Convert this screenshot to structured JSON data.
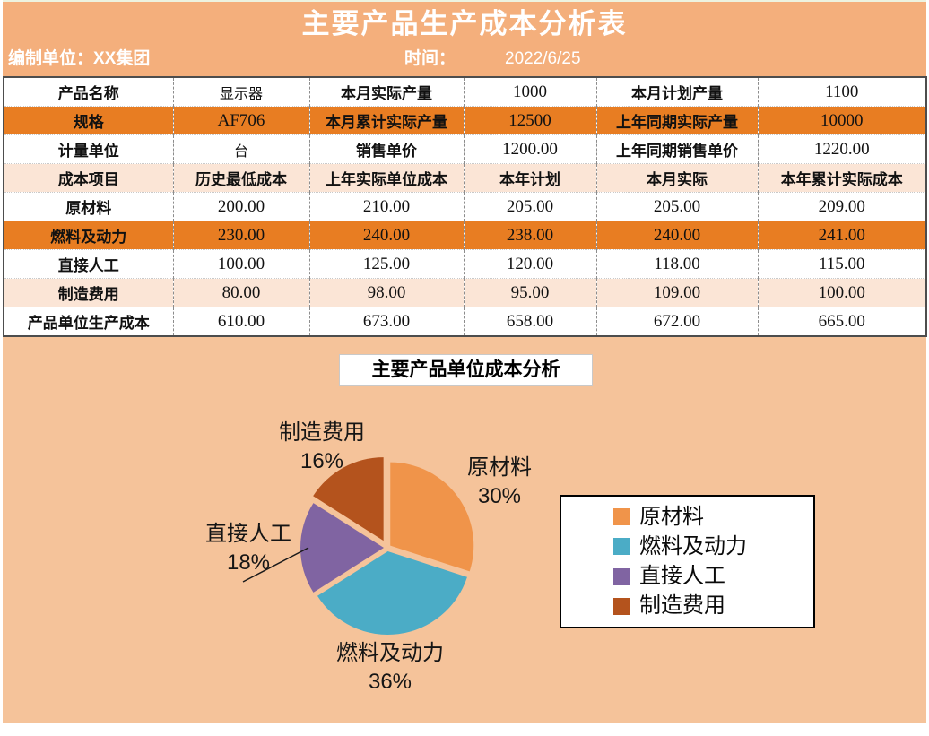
{
  "header": {
    "title": "主要产品生产成本分析表",
    "unit": "编制单位：XX集团",
    "time_label": "时间：",
    "date": "2022/6/25"
  },
  "table": {
    "info_rows": [
      {
        "highlight": "white",
        "cells": [
          "产品名称",
          "显示器",
          "本月实际产量",
          "1000",
          "本月计划产量",
          "1100"
        ]
      },
      {
        "highlight": "orange",
        "cells": [
          "规格",
          "AF706",
          "本月累计实际产量",
          "12500",
          "上年同期实际产量",
          "10000"
        ]
      },
      {
        "highlight": "white",
        "cells": [
          "计量单位",
          "台",
          "销售单价",
          "1200.00",
          "上年同期销售单价",
          "1220.00"
        ]
      }
    ],
    "cost_header": {
      "highlight": "peach",
      "cells": [
        "成本项目",
        "历史最低成本",
        "上年实际单位成本",
        "本年计划",
        "本月实际",
        "本年累计实际成本"
      ]
    },
    "cost_rows": [
      {
        "highlight": "white",
        "cells": [
          "原材料",
          "200.00",
          "210.00",
          "205.00",
          "205.00",
          "209.00"
        ]
      },
      {
        "highlight": "orange",
        "cells": [
          "燃料及动力",
          "230.00",
          "240.00",
          "238.00",
          "240.00",
          "241.00"
        ]
      },
      {
        "highlight": "white",
        "cells": [
          "直接人工",
          "100.00",
          "125.00",
          "120.00",
          "118.00",
          "115.00"
        ]
      },
      {
        "highlight": "peach",
        "cells": [
          "制造费用",
          "80.00",
          "98.00",
          "95.00",
          "109.00",
          "100.00"
        ]
      },
      {
        "highlight": "white",
        "cells": [
          "产品单位生产成本",
          "610.00",
          "673.00",
          "658.00",
          "672.00",
          "665.00"
        ]
      }
    ]
  },
  "chart_data": {
    "type": "pie",
    "title": "主要产品单位成本分析",
    "categories": [
      "原材料",
      "燃料及动力",
      "直接人工",
      "制造费用"
    ],
    "values": [
      30,
      36,
      18,
      16
    ],
    "pct_labels": [
      "30%",
      "36%",
      "18%",
      "16%"
    ],
    "colors": [
      "#F0944A",
      "#4BACC6",
      "#8064A2",
      "#B4531D"
    ],
    "legend_position": "right",
    "exploded_slice": "制造费用",
    "start_angle_deg": 0,
    "direction": "clockwise"
  },
  "colors": {
    "header_bg": "#F4AF7C",
    "chart_bg": "#F5C39A",
    "row_orange": "#E87D22",
    "row_peach": "#FBE5D6",
    "title_text": "#FFFFFF",
    "table_border": "#4D4D4D"
  }
}
